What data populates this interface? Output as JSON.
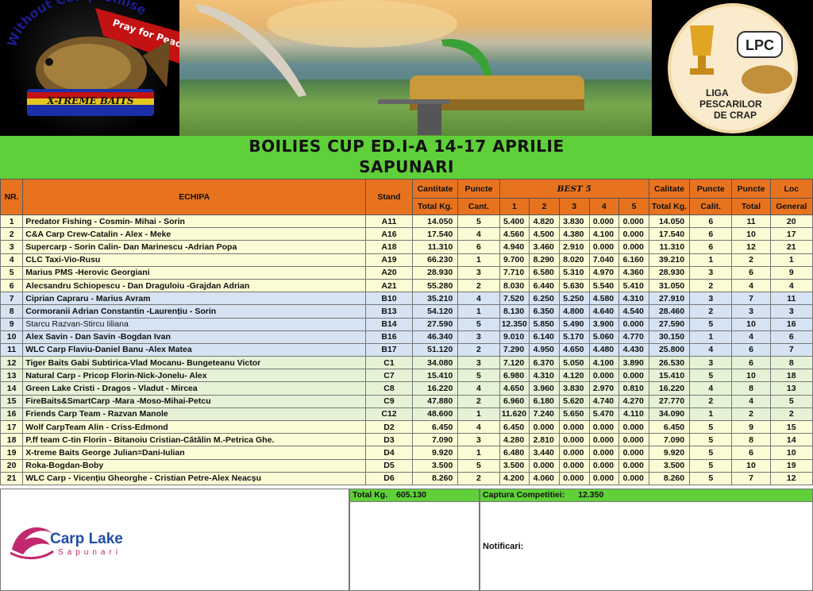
{
  "banner": {
    "left_logo": {
      "arc_text": "Without Compromise",
      "ribbon_text": "Pray for Peace ✠",
      "brand": "X-TREME BAITS"
    },
    "right_logo": {
      "lpc": "LPC",
      "line1": "LIGA",
      "line2": "PESCARILOR",
      "line3": "DE CRAP"
    }
  },
  "title": {
    "line1": "BOILIES CUP ED.I-A 14-17 APRILIE",
    "line2": "SAPUNARI"
  },
  "headers": {
    "nr": "NR.",
    "team": "ECHIPA",
    "stand": "Stand",
    "qty1": "Cantitate",
    "qty2": "Total Kg.",
    "pts1": "Puncte",
    "pts2": "Cant.",
    "best": "BEST 5",
    "b1": "1",
    "b2": "2",
    "b3": "3",
    "b4": "4",
    "b5": "5",
    "qual1": "Calitate",
    "qual2": "Total Kg.",
    "pq1": "Puncte",
    "pq2": "Calit.",
    "pt1": "Puncte",
    "pt2": "Total",
    "loc1": "Loc",
    "loc2": "General"
  },
  "rows": [
    {
      "nr": "1",
      "team": "Predator Fishing - Cosmin- Mihai - Sorin",
      "stand": "A11",
      "qty": "14.050",
      "pc": "5",
      "b": [
        "5.400",
        "4.820",
        "3.830",
        "0.000",
        "0.000"
      ],
      "qual": "14.050",
      "pq": "6",
      "pt": "11",
      "loc": "20",
      "grp": "g1"
    },
    {
      "nr": "2",
      "team": "C&A Carp Crew-Catalin - Alex - Meke",
      "stand": "A16",
      "qty": "17.540",
      "pc": "4",
      "b": [
        "4.560",
        "4.500",
        "4.380",
        "4.100",
        "0.000"
      ],
      "qual": "17.540",
      "pq": "6",
      "pt": "10",
      "loc": "17",
      "grp": "g1"
    },
    {
      "nr": "3",
      "team": "Supercarp - Sorin Calin- Dan Marinescu -Adrian Popa",
      "stand": "A18",
      "qty": "11.310",
      "pc": "6",
      "b": [
        "4.940",
        "3.460",
        "2.910",
        "0.000",
        "0.000"
      ],
      "qual": "11.310",
      "pq": "6",
      "pt": "12",
      "loc": "21",
      "grp": "g1"
    },
    {
      "nr": "4",
      "team": "CLC Taxi-Vio-Rusu",
      "stand": "A19",
      "qty": "66.230",
      "pc": "1",
      "b": [
        "9.700",
        "8.290",
        "8.020",
        "7.040",
        "6.160"
      ],
      "qual": "39.210",
      "pq": "1",
      "pt": "2",
      "loc": "1",
      "grp": "g1"
    },
    {
      "nr": "5",
      "team": "Marius PMS -Herovic Georgiani",
      "stand": "A20",
      "qty": "28.930",
      "pc": "3",
      "b": [
        "7.710",
        "6.580",
        "5.310",
        "4.970",
        "4.360"
      ],
      "qual": "28.930",
      "pq": "3",
      "pt": "6",
      "loc": "9",
      "grp": "g1"
    },
    {
      "nr": "6",
      "team": "Alecsandru Schiopescu - Dan Draguloiu -Grajdan Adrian",
      "stand": "A21",
      "qty": "55.280",
      "pc": "2",
      "b": [
        "8.030",
        "6.440",
        "5.630",
        "5.540",
        "5.410"
      ],
      "qual": "31.050",
      "pq": "2",
      "pt": "4",
      "loc": "4",
      "grp": "g1"
    },
    {
      "nr": "7",
      "team": "Ciprian Capraru - Marius Avram",
      "stand": "B10",
      "qty": "35.210",
      "pc": "4",
      "b": [
        "7.520",
        "6.250",
        "5.250",
        "4.580",
        "4.310"
      ],
      "qual": "27.910",
      "pq": "3",
      "pt": "7",
      "loc": "11",
      "grp": "g2"
    },
    {
      "nr": "8",
      "team": "Cormoranii Adrian Constantin -Laurențiu - Sorin",
      "stand": "B13",
      "qty": "54.120",
      "pc": "1",
      "b": [
        "8.130",
        "6.350",
        "4.800",
        "4.640",
        "4.540"
      ],
      "qual": "28.460",
      "pq": "2",
      "pt": "3",
      "loc": "3",
      "grp": "g2"
    },
    {
      "nr": "9",
      "team": "Starcu Razvan-Stircu Iiliana",
      "stand": "B14",
      "qty": "27.590",
      "pc": "5",
      "b": [
        "12.350",
        "5.850",
        "5.490",
        "3.900",
        "0.000"
      ],
      "qual": "27.590",
      "pq": "5",
      "pt": "10",
      "loc": "16",
      "grp": "g2"
    },
    {
      "nr": "10",
      "team": "Alex Savin - Dan Savin -Bogdan Ivan",
      "stand": "B16",
      "qty": "46.340",
      "pc": "3",
      "b": [
        "9.010",
        "6.140",
        "5.170",
        "5.060",
        "4.770"
      ],
      "qual": "30.150",
      "pq": "1",
      "pt": "4",
      "loc": "6",
      "grp": "g2"
    },
    {
      "nr": "11",
      "team": "WLC Carp Flaviu-Daniel Banu -Alex Matea",
      "stand": "B17",
      "qty": "51.120",
      "pc": "2",
      "b": [
        "7.290",
        "4.950",
        "4.650",
        "4.480",
        "4.430"
      ],
      "qual": "25.800",
      "pq": "4",
      "pt": "6",
      "loc": "7",
      "grp": "g2"
    },
    {
      "nr": "12",
      "team": "Tiger Baits Gabi Subtirica-Vlad Mocanu- Bungeteanu Victor",
      "stand": "C1",
      "qty": "34.080",
      "pc": "3",
      "b": [
        "7.120",
        "6.370",
        "5.050",
        "4.100",
        "3.890"
      ],
      "qual": "26.530",
      "pq": "3",
      "pt": "6",
      "loc": "8",
      "grp": "g3"
    },
    {
      "nr": "13",
      "team": " Natural Carp - Pricop Florin-Nick-Jonelu- Alex",
      "stand": "C7",
      "qty": "15.410",
      "pc": "5",
      "b": [
        "6.980",
        "4.310",
        "4.120",
        "0.000",
        "0.000"
      ],
      "qual": "15.410",
      "pq": "5",
      "pt": "10",
      "loc": "18",
      "grp": "g3"
    },
    {
      "nr": "14",
      "team": "Green Lake Cristi - Dragos - Vladut - Mircea",
      "stand": "C8",
      "qty": "16.220",
      "pc": "4",
      "b": [
        "4.650",
        "3.960",
        "3.830",
        "2.970",
        "0.810"
      ],
      "qual": "16.220",
      "pq": "4",
      "pt": "8",
      "loc": "13",
      "grp": "g3"
    },
    {
      "nr": "15",
      "team": "FireBaits&SmartCarp -Mara -Moso-Mihai-Petcu",
      "stand": "C9",
      "qty": "47.880",
      "pc": "2",
      "b": [
        "6.960",
        "6.180",
        "5.620",
        "4.740",
        "4.270"
      ],
      "qual": "27.770",
      "pq": "2",
      "pt": "4",
      "loc": "5",
      "grp": "g3"
    },
    {
      "nr": "16",
      "team": "Friends Carp Team - Razvan Manole",
      "stand": "C12",
      "qty": "48.600",
      "pc": "1",
      "b": [
        "11.620",
        "7.240",
        "5.650",
        "5.470",
        "4.110"
      ],
      "qual": "34.090",
      "pq": "1",
      "pt": "2",
      "loc": "2",
      "grp": "g3"
    },
    {
      "nr": "17",
      "team": "Wolf CarpTeam Alin - Criss-Edmond",
      "stand": "D2",
      "qty": "6.450",
      "pc": "4",
      "b": [
        "6.450",
        "0.000",
        "0.000",
        "0.000",
        "0.000"
      ],
      "qual": "6.450",
      "pq": "5",
      "pt": "9",
      "loc": "15",
      "grp": "g4"
    },
    {
      "nr": "18",
      "team": "P.ff team C-tin Florin - Bitanoiu Cristian-Cătălin M.-Petrica Ghe.",
      "stand": "D3",
      "qty": "7.090",
      "pc": "3",
      "b": [
        "4.280",
        "2.810",
        "0.000",
        "0.000",
        "0.000"
      ],
      "qual": "7.090",
      "pq": "5",
      "pt": "8",
      "loc": "14",
      "grp": "g4"
    },
    {
      "nr": "19",
      "team": "X-treme Baits George Julian=Dani-Iulian",
      "stand": "D4",
      "qty": "9.920",
      "pc": "1",
      "b": [
        "6.480",
        "3.440",
        "0.000",
        "0.000",
        "0.000"
      ],
      "qual": "9.920",
      "pq": "5",
      "pt": "6",
      "loc": "10",
      "grp": "g4"
    },
    {
      "nr": "20",
      "team": "Roka-Bogdan-Boby",
      "stand": "D5",
      "qty": "3.500",
      "pc": "5",
      "b": [
        "3.500",
        "0.000",
        "0.000",
        "0.000",
        "0.000"
      ],
      "qual": "3.500",
      "pq": "5",
      "pt": "10",
      "loc": "19",
      "grp": "g4"
    },
    {
      "nr": "21",
      "team": "WLC Carp - Vicențiu Gheorghe - Cristian Petre-Alex Neacșu",
      "stand": "D6",
      "qty": "8.260",
      "pc": "2",
      "b": [
        "4.200",
        "4.060",
        "0.000",
        "0.000",
        "0.000"
      ],
      "qual": "8.260",
      "pq": "5",
      "pt": "7",
      "loc": "12",
      "grp": "g4"
    }
  ],
  "footer": {
    "total_label": "Total Kg.",
    "total_value": "605.130",
    "capture_label": "Captura Competitiei:",
    "capture_value": "12.350",
    "notifications": "Notificari:",
    "logo_line1": "Carp Lake",
    "logo_line2": "Sapunari"
  }
}
